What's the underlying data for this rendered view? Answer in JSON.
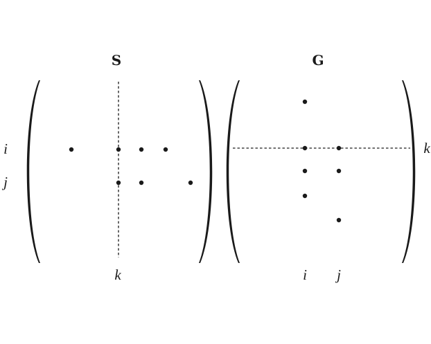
{
  "matrices": {
    "S": {
      "title": "S",
      "row_labels": {
        "i": "i",
        "j": "j"
      },
      "column_label": "k"
    },
    "G": {
      "title": "G",
      "row_label": "k",
      "column_labels": {
        "i": "i",
        "j": "j"
      }
    }
  },
  "colors": {
    "ink": "#1a1a1a",
    "background": "#ffffff"
  }
}
